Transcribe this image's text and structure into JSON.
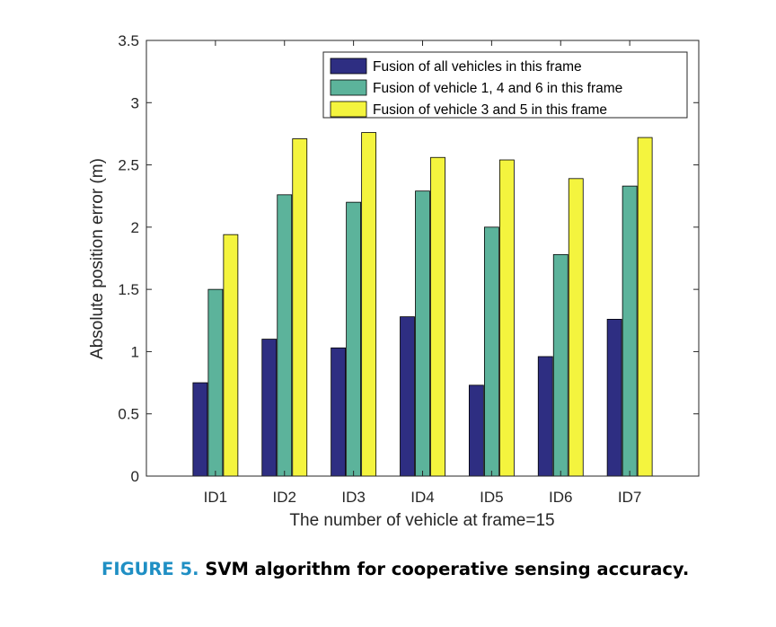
{
  "chart_data": {
    "type": "bar",
    "categories": [
      "ID1",
      "ID2",
      "ID3",
      "ID4",
      "ID5",
      "ID6",
      "ID7"
    ],
    "series": [
      {
        "name": "Fusion of all vehicles in this frame",
        "color": "#2e2e82",
        "values": [
          0.75,
          1.1,
          1.03,
          1.28,
          0.73,
          0.96,
          1.26
        ]
      },
      {
        "name": "Fusion of vehicle 1, 4 and 6 in this frame",
        "color": "#5cb39b",
        "values": [
          1.5,
          2.26,
          2.2,
          2.29,
          2.0,
          1.78,
          2.33
        ]
      },
      {
        "name": "Fusion of vehicle 3 and 5 in this frame",
        "color": "#f4f43e",
        "values": [
          1.94,
          2.71,
          2.76,
          2.56,
          2.54,
          2.39,
          2.72
        ]
      }
    ],
    "xlabel": "The number of vehicle at frame=15",
    "ylabel": "Absolute position error (m)",
    "ylim": [
      0,
      3.5
    ],
    "yticks": [
      "0",
      "0.5",
      "1",
      "1.5",
      "2",
      "2.5",
      "3",
      "3.5"
    ],
    "legend_position": "top-right",
    "grid": false
  },
  "caption": {
    "label": "FIGURE 5.",
    "text": "SVM algorithm for cooperative sensing accuracy."
  }
}
